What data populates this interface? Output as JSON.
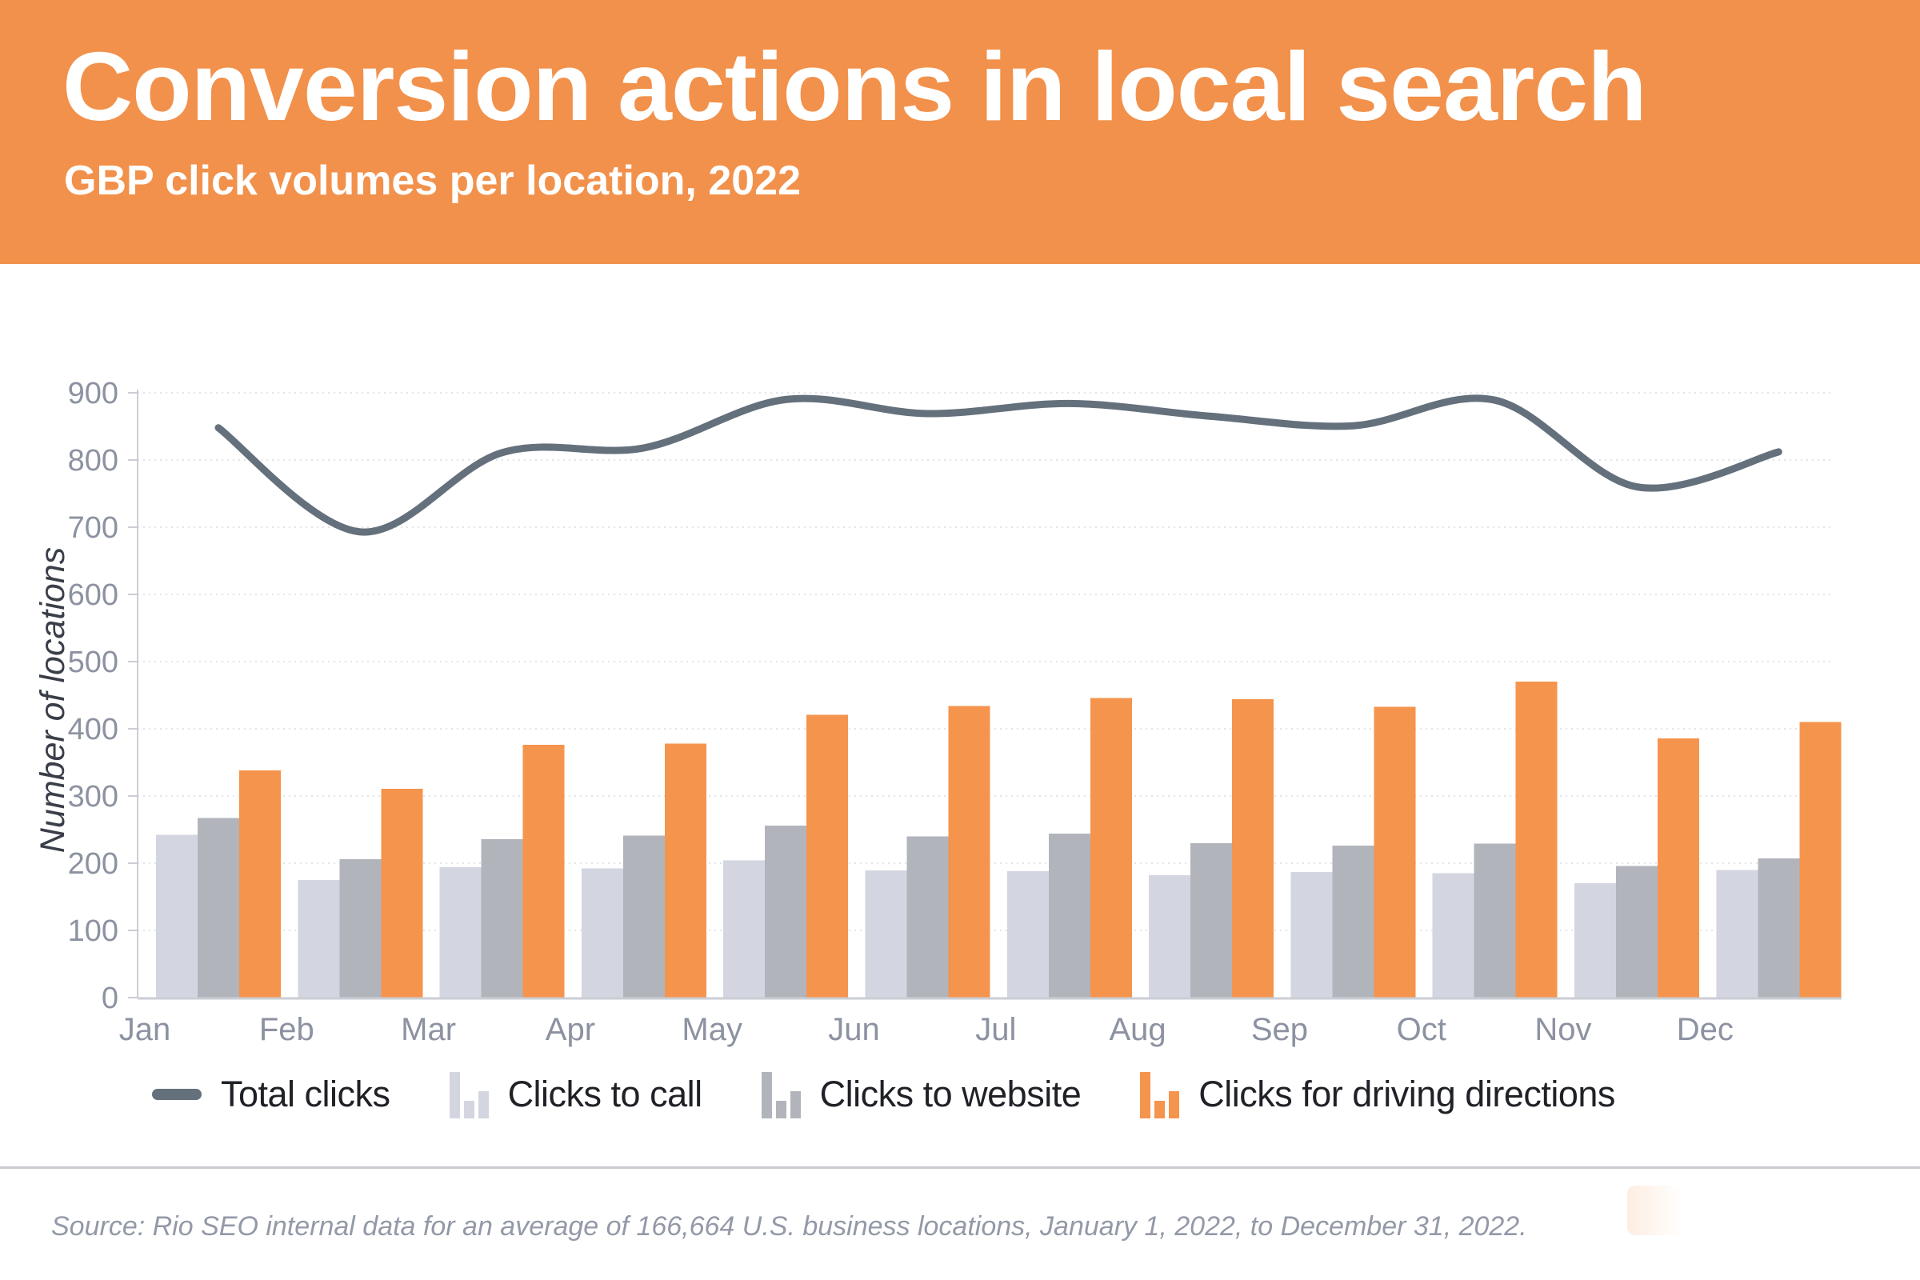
{
  "header": {
    "title": "Conversion actions in local search",
    "subtitle": "GBP click volumes per location, 2022"
  },
  "legend": {
    "items": [
      {
        "label": "Total clicks",
        "icon": "line-dash-icon",
        "series": "total_clicks"
      },
      {
        "label": "Clicks to call",
        "icon": "mini-bars-icon",
        "series": "clicks_to_call"
      },
      {
        "label": "Clicks to website",
        "icon": "mini-bars-icon",
        "series": "clicks_to_website"
      },
      {
        "label": "Clicks for driving directions",
        "icon": "mini-bars-icon",
        "series": "clicks_for_driving_directions"
      }
    ]
  },
  "source": "Source: Rio SEO internal data for an average of 166,664 U.S. business locations, January 1, 2022, to December 31, 2022.",
  "chart_data": {
    "type": "bar",
    "title": "",
    "xlabel": "",
    "ylabel": "Number of locations",
    "ylim": [
      0,
      900
    ],
    "ytick_step": 100,
    "grid": true,
    "legend_position": "bottom",
    "categories": [
      "Jan",
      "Feb",
      "Mar",
      "Apr",
      "May",
      "Jun",
      "Jul",
      "Aug",
      "Sep",
      "Oct",
      "Nov",
      "Dec"
    ],
    "series": [
      {
        "name": "Total clicks",
        "type": "line",
        "values": [
          848,
          693,
          811,
          818,
          890,
          869,
          884,
          865,
          851,
          889,
          760,
          812
        ]
      },
      {
        "name": "Clicks to call",
        "type": "bar",
        "values": [
          242,
          175,
          194,
          192,
          204,
          189,
          188,
          182,
          187,
          185,
          170,
          190
        ]
      },
      {
        "name": "Clicks to website",
        "type": "bar",
        "values": [
          267,
          206,
          236,
          241,
          256,
          240,
          244,
          230,
          226,
          229,
          196,
          207
        ]
      },
      {
        "name": "Clicks for driving directions",
        "type": "bar",
        "values": [
          338,
          311,
          376,
          378,
          421,
          434,
          446,
          444,
          433,
          470,
          386,
          410
        ]
      }
    ]
  },
  "colors": {
    "header_bg": "#F2914B",
    "orange": "#F5944D",
    "light_bar": "#D3D5E0",
    "gray_bar": "#B2B4BC",
    "line": "#64707C",
    "axis_text": "#8C92A1",
    "grid": "#E3E4E8",
    "axis_line": "#CBCED5",
    "legend_text": "#1F2127",
    "source_text": "#9399A7",
    "ylabel_text": "#3A3E48",
    "divider": "#C8CBD0",
    "title_text": "#FFFFFF"
  }
}
